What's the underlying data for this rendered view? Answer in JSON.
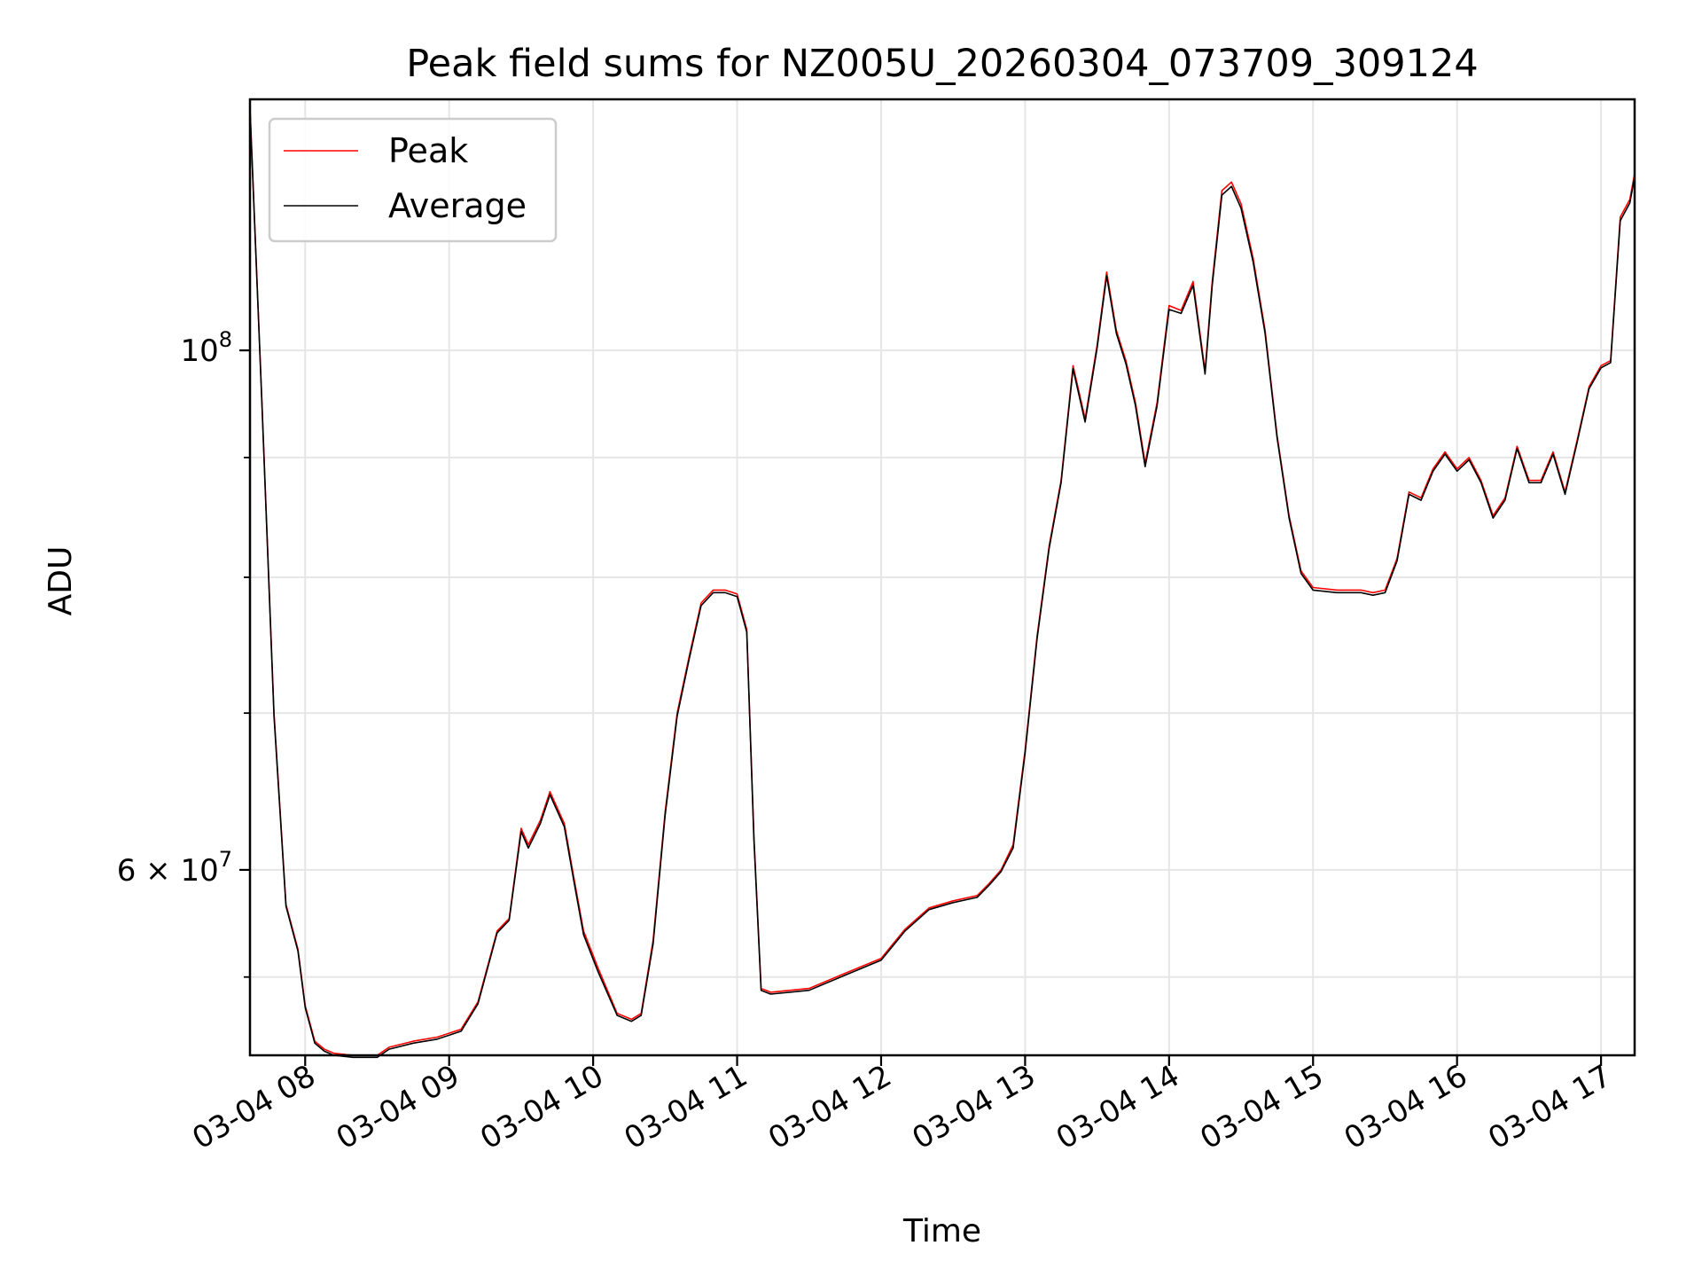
{
  "chart_data": {
    "type": "line",
    "title": "Peak field sums for NZ005U_20260304_073709_309124",
    "xlabel": "Time",
    "ylabel": "ADU",
    "y_scale": "log",
    "grid": true,
    "legend_position": "top-left",
    "xlim": [
      "2026-03-04 07:37",
      "2026-03-04 17:14"
    ],
    "ylim": [
      50000000,
      128000000
    ],
    "x_ticks": [
      "03-04 08",
      "03-04 09",
      "03-04 10",
      "03-04 11",
      "03-04 12",
      "03-04 13",
      "03-04 14",
      "03-04 15",
      "03-04 16",
      "03-04 17"
    ],
    "y_major_ticks": [
      {
        "value": 60000000,
        "base": "6 × 10",
        "exp": "7"
      },
      {
        "value": 100000000,
        "base": "10",
        "exp": "8"
      }
    ],
    "y_minor_ticks": [
      54000000,
      70000000,
      80000000,
      90000000
    ],
    "colors": {
      "peak": "#ff0000",
      "average": "#000000",
      "grid": "#e6e6e6"
    },
    "x": [
      "2026-03-04 07:37",
      "2026-03-04 07:42",
      "2026-03-04 07:47",
      "2026-03-04 07:52",
      "2026-03-04 07:57",
      "2026-03-04 08:00",
      "2026-03-04 08:04",
      "2026-03-04 08:08",
      "2026-03-04 08:12",
      "2026-03-04 08:20",
      "2026-03-04 08:30",
      "2026-03-04 08:35",
      "2026-03-04 08:45",
      "2026-03-04 08:55",
      "2026-03-04 09:05",
      "2026-03-04 09:12",
      "2026-03-04 09:20",
      "2026-03-04 09:25",
      "2026-03-04 09:30",
      "2026-03-04 09:33",
      "2026-03-04 09:38",
      "2026-03-04 09:42",
      "2026-03-04 09:48",
      "2026-03-04 09:52",
      "2026-03-04 09:56",
      "2026-03-04 10:02",
      "2026-03-04 10:10",
      "2026-03-04 10:16",
      "2026-03-04 10:20",
      "2026-03-04 10:25",
      "2026-03-04 10:30",
      "2026-03-04 10:35",
      "2026-03-04 10:40",
      "2026-03-04 10:45",
      "2026-03-04 10:50",
      "2026-03-04 10:55",
      "2026-03-04 11:00",
      "2026-03-04 11:04",
      "2026-03-04 11:07",
      "2026-03-04 11:10",
      "2026-03-04 11:14",
      "2026-03-04 11:30",
      "2026-03-04 11:45",
      "2026-03-04 12:00",
      "2026-03-04 12:10",
      "2026-03-04 12:20",
      "2026-03-04 12:30",
      "2026-03-04 12:40",
      "2026-03-04 12:45",
      "2026-03-04 12:50",
      "2026-03-04 12:55",
      "2026-03-04 13:00",
      "2026-03-04 13:05",
      "2026-03-04 13:10",
      "2026-03-04 13:15",
      "2026-03-04 13:20",
      "2026-03-04 13:25",
      "2026-03-04 13:30",
      "2026-03-04 13:34",
      "2026-03-04 13:38",
      "2026-03-04 13:42",
      "2026-03-04 13:46",
      "2026-03-04 13:50",
      "2026-03-04 13:55",
      "2026-03-04 14:00",
      "2026-03-04 14:05",
      "2026-03-04 14:10",
      "2026-03-04 14:15",
      "2026-03-04 14:18",
      "2026-03-04 14:22",
      "2026-03-04 14:26",
      "2026-03-04 14:30",
      "2026-03-04 14:35",
      "2026-03-04 14:40",
      "2026-03-04 14:45",
      "2026-03-04 14:50",
      "2026-03-04 14:55",
      "2026-03-04 15:00",
      "2026-03-04 15:10",
      "2026-03-04 15:20",
      "2026-03-04 15:25",
      "2026-03-04 15:30",
      "2026-03-04 15:35",
      "2026-03-04 15:40",
      "2026-03-04 15:45",
      "2026-03-04 15:50",
      "2026-03-04 15:55",
      "2026-03-04 16:00",
      "2026-03-04 16:05",
      "2026-03-04 16:10",
      "2026-03-04 16:15",
      "2026-03-04 16:20",
      "2026-03-04 16:25",
      "2026-03-04 16:30",
      "2026-03-04 16:35",
      "2026-03-04 16:40",
      "2026-03-04 16:45",
      "2026-03-04 16:50",
      "2026-03-04 16:55",
      "2026-03-04 17:00",
      "2026-03-04 17:04",
      "2026-03-04 17:08",
      "2026-03-04 17:12",
      "2026-03-04 17:14"
    ],
    "series": [
      {
        "name": "Peak",
        "values": [
          127000000,
          95000000,
          70000000,
          58000000,
          55500000,
          52500000,
          50700000,
          50300000,
          50100000,
          50000000,
          50000000,
          50400000,
          50700000,
          50900000,
          51300000,
          52700000,
          56500000,
          57200000,
          62500000,
          61500000,
          63000000,
          64800000,
          62800000,
          59500000,
          56500000,
          54500000,
          52100000,
          51800000,
          52100000,
          56000000,
          63500000,
          70000000,
          74000000,
          78000000,
          79000000,
          79000000,
          78700000,
          76000000,
          62000000,
          53400000,
          53200000,
          53400000,
          54200000,
          55000000,
          56600000,
          57800000,
          58200000,
          58500000,
          59200000,
          60000000,
          61500000,
          67500000,
          75500000,
          82500000,
          88000000,
          98500000,
          93500000,
          100500000,
          108000000,
          102000000,
          99000000,
          95000000,
          89500000,
          95000000,
          104500000,
          104000000,
          107000000,
          98000000,
          107000000,
          117000000,
          118000000,
          115500000,
          109500000,
          102000000,
          92000000,
          85000000,
          80500000,
          79200000,
          79000000,
          79000000,
          78800000,
          79000000,
          81500000,
          87000000,
          86500000,
          89000000,
          90500000,
          89000000,
          90000000,
          88000000,
          85000000,
          86500000,
          91000000,
          88000000,
          88000000,
          90500000,
          87000000,
          91500000,
          96500000,
          98500000,
          99000000,
          114000000,
          116000000,
          119000000
        ]
      },
      {
        "name": "Average",
        "values": [
          126800000,
          94800000,
          69800000,
          57900000,
          55400000,
          52400000,
          50600000,
          50200000,
          50000000,
          49900000,
          49900000,
          50300000,
          50600000,
          50800000,
          51200000,
          52600000,
          56400000,
          57100000,
          62300000,
          61300000,
          62800000,
          64600000,
          62600000,
          59300000,
          56300000,
          54300000,
          52000000,
          51700000,
          52000000,
          55800000,
          63300000,
          69800000,
          73800000,
          77800000,
          78800000,
          78800000,
          78500000,
          75800000,
          61800000,
          53300000,
          53100000,
          53300000,
          54100000,
          54900000,
          56500000,
          57700000,
          58100000,
          58400000,
          59100000,
          59900000,
          61300000,
          67300000,
          75300000,
          82300000,
          87800000,
          98200000,
          93200000,
          100200000,
          107600000,
          101700000,
          98700000,
          94700000,
          89200000,
          94700000,
          104100000,
          103700000,
          106600000,
          97700000,
          106600000,
          116500000,
          117500000,
          115000000,
          109100000,
          101700000,
          91800000,
          84800000,
          80300000,
          79000000,
          78800000,
          78800000,
          78600000,
          78800000,
          81300000,
          86800000,
          86300000,
          88800000,
          90300000,
          88800000,
          89800000,
          87800000,
          84800000,
          86300000,
          90800000,
          87800000,
          87800000,
          90300000,
          86800000,
          91300000,
          96300000,
          98300000,
          98800000,
          113600000,
          115600000,
          118600000
        ]
      }
    ]
  }
}
